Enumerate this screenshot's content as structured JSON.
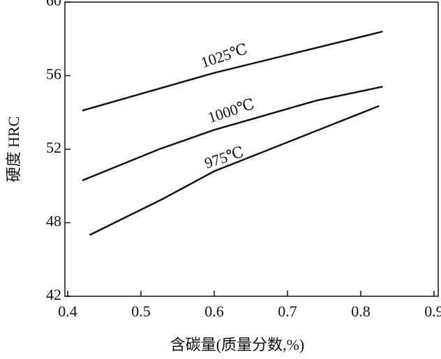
{
  "chart_data": {
    "type": "line",
    "x_label": "含碳量(质量分数,%)",
    "y_label": "硬度 HRC",
    "xlim": [
      0.4,
      0.9
    ],
    "xticks": [
      {
        "value": 0.4,
        "label": "0.4"
      },
      {
        "value": 0.5,
        "label": "0.5"
      },
      {
        "value": 0.6,
        "label": "0.6"
      },
      {
        "value": 0.7,
        "label": "0.7"
      },
      {
        "value": 0.8,
        "label": "0.8"
      },
      {
        "value": 0.9,
        "label": "0.9"
      }
    ],
    "ylim": [
      42,
      60
    ],
    "yticks": [
      42,
      48,
      52,
      56,
      60
    ],
    "color": "#111111",
    "series": [
      {
        "name": "1025℃",
        "x": [
          0.42,
          0.6,
          0.83
        ],
        "values": [
          54.1,
          56.15,
          58.4
        ]
      },
      {
        "name": "1000℃",
        "x": [
          0.42,
          0.525,
          0.6,
          0.74,
          0.83
        ],
        "values": [
          50.3,
          52.0,
          53.05,
          54.65,
          55.4
        ]
      },
      {
        "name": "975℃",
        "x": [
          0.43,
          0.53,
          0.6,
          0.825
        ],
        "values": [
          47.0,
          49.3,
          50.8,
          54.35
        ]
      }
    ]
  }
}
